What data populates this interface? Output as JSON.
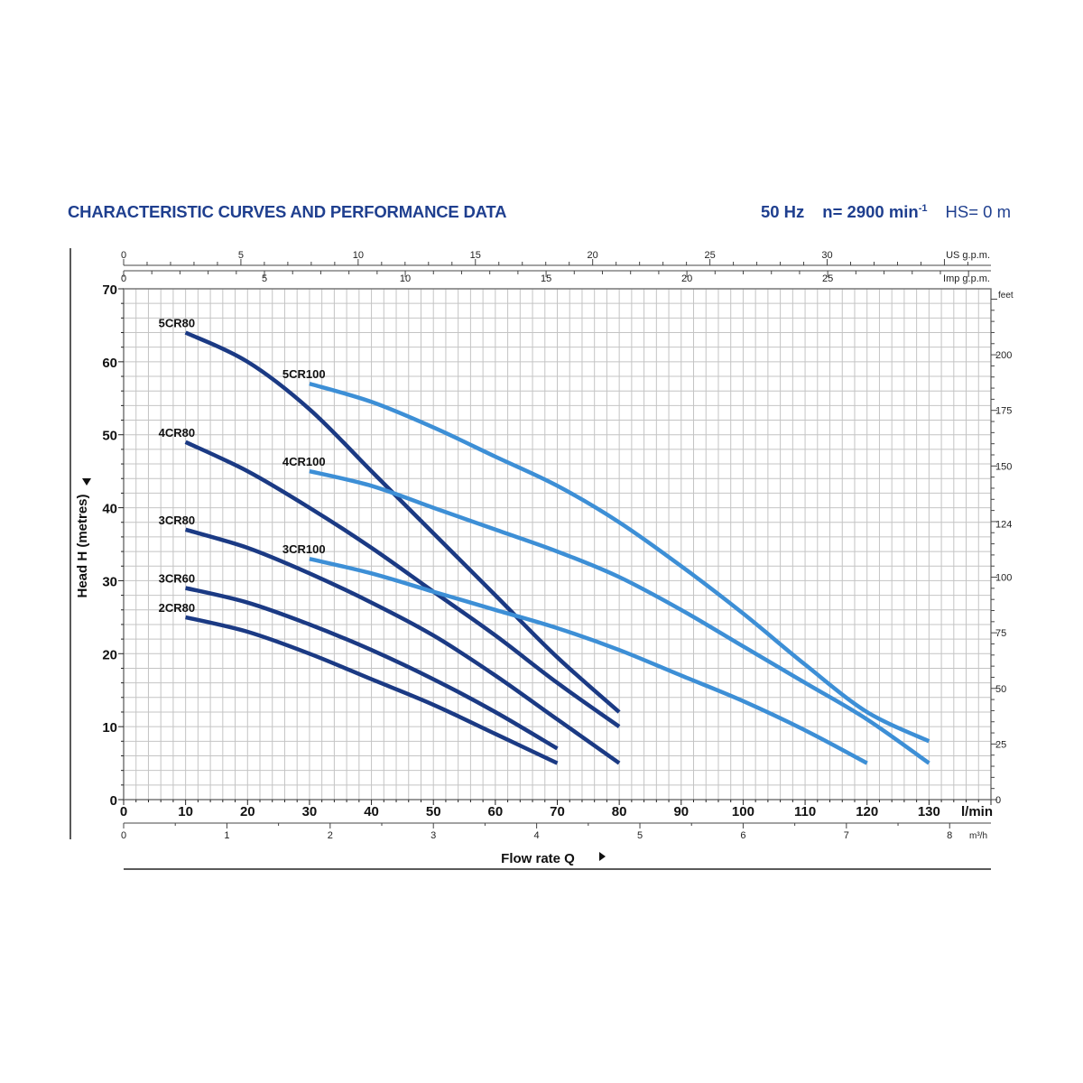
{
  "header": {
    "title": "CHARACTERISTIC CURVES AND PERFORMANCE DATA",
    "frequency": "50 Hz",
    "speed": "n= 2900 min",
    "speed_exp": "-1",
    "hs": "HS= 0 m"
  },
  "colors": {
    "cr80": "#1b3a84",
    "cr100": "#3d8fd6",
    "title": "#1f3f8f",
    "grid": "#c4c4c4"
  },
  "chart_data": {
    "type": "line",
    "xlabel": "Flow rate Q",
    "ylabel": "Head H (metres)",
    "x_unit": "l/min",
    "xlim": [
      0,
      140
    ],
    "ylim": [
      0,
      70
    ],
    "grid": true,
    "x_ticks": [
      "0",
      "10",
      "20",
      "30",
      "40",
      "50",
      "60",
      "70",
      "80",
      "90",
      "100",
      "110",
      "120",
      "130"
    ],
    "y_ticks": [
      "0",
      "10",
      "20",
      "30",
      "40",
      "50",
      "60",
      "70"
    ],
    "feet_unit": "feet",
    "feet_ticks": [
      "0",
      "25",
      "50",
      "75",
      "100",
      "124",
      "150",
      "175",
      "200"
    ],
    "m3h_unit": "m³/h",
    "m3h_ticks": [
      "0",
      "1",
      "2",
      "3",
      "4",
      "5",
      "6",
      "7",
      "8"
    ],
    "us_gpm_unit": "US g.p.m.",
    "us_gpm_ticks": [
      "0",
      "5",
      "10",
      "15",
      "20",
      "25",
      "30"
    ],
    "imp_gpm_unit": "Imp g.p.m.",
    "imp_gpm_ticks": [
      "0",
      "5",
      "10",
      "15",
      "20",
      "25"
    ],
    "series": [
      {
        "name": "5CR80",
        "group": "cr80",
        "x": [
          10,
          20,
          30,
          40,
          50,
          60,
          70,
          80
        ],
        "y": [
          64,
          60,
          53.5,
          45,
          36.5,
          28,
          19.5,
          12
        ]
      },
      {
        "name": "4CR80",
        "group": "cr80",
        "x": [
          10,
          20,
          30,
          40,
          50,
          60,
          70,
          80
        ],
        "y": [
          49,
          45,
          40,
          34.5,
          28.5,
          22.5,
          16,
          10
        ]
      },
      {
        "name": "3CR80",
        "group": "cr80",
        "x": [
          10,
          20,
          30,
          40,
          50,
          60,
          70,
          80
        ],
        "y": [
          37,
          34.5,
          31,
          27,
          22.5,
          17,
          11,
          5
        ]
      },
      {
        "name": "3CR60",
        "group": "cr80",
        "x": [
          10,
          20,
          30,
          40,
          50,
          60,
          70
        ],
        "y": [
          29,
          27,
          24,
          20.5,
          16.5,
          12,
          7
        ]
      },
      {
        "name": "2CR80",
        "group": "cr80",
        "x": [
          10,
          20,
          30,
          40,
          50,
          60,
          70
        ],
        "y": [
          25,
          23,
          20,
          16.5,
          13,
          9,
          5
        ]
      },
      {
        "name": "5CR100",
        "group": "cr100",
        "x": [
          30,
          40,
          50,
          60,
          70,
          80,
          90,
          100,
          110,
          120,
          130
        ],
        "y": [
          57,
          54.5,
          51,
          47,
          43,
          38,
          32,
          25.5,
          18.5,
          12,
          8
        ]
      },
      {
        "name": "4CR100",
        "group": "cr100",
        "x": [
          30,
          40,
          50,
          60,
          70,
          80,
          90,
          100,
          110,
          120,
          130
        ],
        "y": [
          45,
          43,
          40,
          37,
          34,
          30.5,
          26,
          21,
          16,
          11,
          5
        ]
      },
      {
        "name": "3CR100",
        "group": "cr100",
        "x": [
          30,
          40,
          50,
          60,
          70,
          80,
          90,
          100,
          110,
          120
        ],
        "y": [
          33,
          31,
          28.5,
          26,
          23.5,
          20.5,
          17,
          13.5,
          9.5,
          5
        ]
      }
    ]
  }
}
